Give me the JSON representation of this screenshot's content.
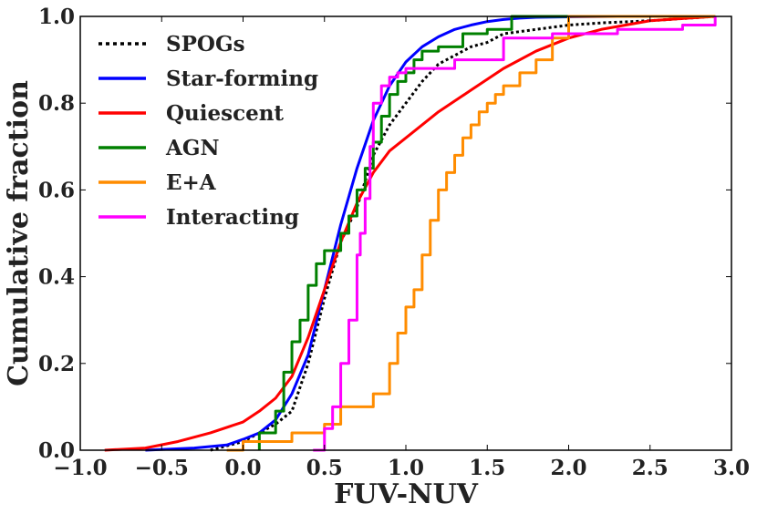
{
  "chart_data": {
    "type": "line",
    "title": "",
    "xlabel": "FUV-NUV",
    "ylabel": "Cumulative fraction",
    "xlim": [
      -1.0,
      3.0
    ],
    "ylim": [
      0.0,
      1.0
    ],
    "x_ticks": [
      -1.0,
      -0.5,
      0.0,
      0.5,
      1.0,
      1.5,
      2.0,
      2.5,
      3.0
    ],
    "y_ticks": [
      0.0,
      0.2,
      0.4,
      0.6,
      0.8,
      1.0
    ],
    "x_tick_labels": [
      "−1.0",
      "−0.5",
      "0.0",
      "0.5",
      "1.0",
      "1.5",
      "2.0",
      "2.5",
      "3.0"
    ],
    "y_tick_labels": [
      "0.0",
      "0.2",
      "0.4",
      "0.6",
      "0.8",
      "1.0"
    ],
    "grid": false,
    "legend_position": "top-left",
    "series": [
      {
        "name": "SPOGs",
        "color": "#000000",
        "style": "dotted",
        "x": [
          -0.2,
          0.0,
          0.2,
          0.3,
          0.4,
          0.5,
          0.6,
          0.7,
          0.8,
          0.9,
          1.0,
          1.1,
          1.2,
          1.3,
          1.4,
          1.5,
          1.6,
          1.8,
          2.0,
          2.2,
          2.5,
          2.9
        ],
        "y": [
          0.0,
          0.02,
          0.06,
          0.09,
          0.2,
          0.35,
          0.48,
          0.56,
          0.68,
          0.75,
          0.8,
          0.85,
          0.89,
          0.91,
          0.93,
          0.94,
          0.96,
          0.97,
          0.98,
          0.985,
          0.99,
          1.0
        ]
      },
      {
        "name": "Star-forming",
        "color": "#0000ff",
        "style": "solid",
        "x": [
          -0.6,
          -0.3,
          -0.1,
          0.0,
          0.1,
          0.2,
          0.3,
          0.4,
          0.5,
          0.6,
          0.7,
          0.8,
          0.9,
          1.0,
          1.1,
          1.2,
          1.3,
          1.4,
          1.5,
          1.6,
          1.7,
          1.8,
          2.0,
          2.3
        ],
        "y": [
          0.0,
          0.005,
          0.012,
          0.025,
          0.04,
          0.07,
          0.13,
          0.22,
          0.37,
          0.52,
          0.65,
          0.76,
          0.84,
          0.895,
          0.93,
          0.953,
          0.97,
          0.98,
          0.988,
          0.993,
          0.996,
          0.998,
          0.999,
          1.0
        ]
      },
      {
        "name": "Quiescent",
        "color": "#ff0000",
        "style": "solid",
        "x": [
          -0.85,
          -0.6,
          -0.4,
          -0.2,
          0.0,
          0.1,
          0.2,
          0.3,
          0.4,
          0.5,
          0.6,
          0.7,
          0.8,
          0.9,
          1.0,
          1.2,
          1.4,
          1.6,
          1.8,
          2.0,
          2.2,
          2.5,
          2.9
        ],
        "y": [
          0.0,
          0.005,
          0.02,
          0.04,
          0.065,
          0.09,
          0.12,
          0.17,
          0.26,
          0.37,
          0.48,
          0.57,
          0.64,
          0.69,
          0.72,
          0.78,
          0.83,
          0.88,
          0.92,
          0.95,
          0.97,
          0.99,
          1.0
        ]
      },
      {
        "name": "AGN",
        "color": "#008000",
        "style": "step",
        "x": [
          0.1,
          0.2,
          0.25,
          0.3,
          0.35,
          0.4,
          0.45,
          0.5,
          0.6,
          0.65,
          0.7,
          0.75,
          0.8,
          0.85,
          0.9,
          0.95,
          1.0,
          1.05,
          1.1,
          1.2,
          1.35,
          1.5,
          1.65,
          2.0,
          2.9
        ],
        "y": [
          0.04,
          0.09,
          0.18,
          0.25,
          0.3,
          0.38,
          0.43,
          0.46,
          0.5,
          0.54,
          0.6,
          0.65,
          0.71,
          0.77,
          0.82,
          0.85,
          0.87,
          0.9,
          0.92,
          0.93,
          0.96,
          0.97,
          1.0,
          1.0,
          1.0
        ]
      },
      {
        "name": "E+A",
        "color": "#ff8c00",
        "style": "step",
        "x": [
          -0.1,
          0.0,
          0.3,
          0.5,
          0.6,
          0.8,
          0.9,
          0.95,
          1.0,
          1.05,
          1.1,
          1.15,
          1.2,
          1.25,
          1.3,
          1.35,
          1.4,
          1.45,
          1.5,
          1.55,
          1.6,
          1.7,
          1.8,
          1.9,
          2.0,
          2.9
        ],
        "y": [
          0.0,
          0.02,
          0.04,
          0.06,
          0.1,
          0.13,
          0.2,
          0.27,
          0.33,
          0.37,
          0.45,
          0.53,
          0.6,
          0.64,
          0.68,
          0.72,
          0.75,
          0.78,
          0.8,
          0.82,
          0.84,
          0.87,
          0.9,
          0.95,
          1.0,
          1.0
        ]
      },
      {
        "name": "Interacting",
        "color": "#ff00ff",
        "style": "step",
        "x": [
          0.43,
          0.5,
          0.55,
          0.6,
          0.65,
          0.7,
          0.72,
          0.75,
          0.78,
          0.8,
          0.85,
          0.9,
          0.95,
          1.0,
          1.1,
          1.3,
          1.6,
          1.9,
          2.3,
          2.7,
          2.9
        ],
        "y": [
          0.0,
          0.05,
          0.1,
          0.2,
          0.3,
          0.45,
          0.5,
          0.58,
          0.7,
          0.8,
          0.84,
          0.86,
          0.87,
          0.88,
          0.88,
          0.9,
          0.95,
          0.96,
          0.97,
          0.98,
          1.0
        ]
      }
    ]
  }
}
